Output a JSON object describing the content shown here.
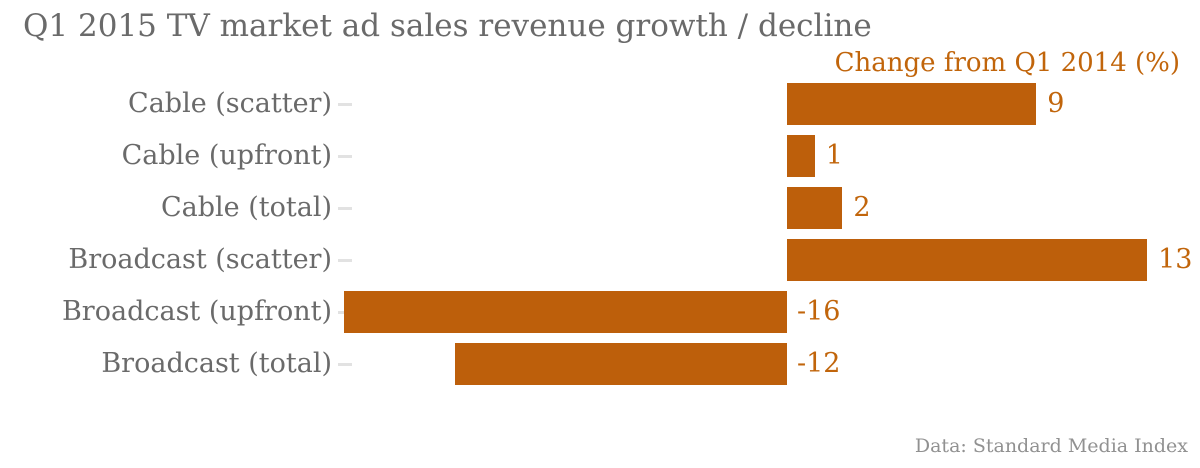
{
  "title": "Q1 2015 TV market ad sales revenue growth / decline",
  "legend": "Change from Q1 2014 (%)",
  "source": "Data: Standard Media Index",
  "colors": {
    "bar": "#bd5f0b",
    "accent_text": "#c1650b",
    "gray_text": "#6a6a6a",
    "source_text": "#919191",
    "tick": "#e2e2e2",
    "background": "#ffffff"
  },
  "chart_data": {
    "type": "bar",
    "orientation": "horizontal",
    "title": "Q1 2015 TV market ad sales revenue growth / decline",
    "series_label": "Change from Q1 2014 (%)",
    "categories": [
      "Cable (scatter)",
      "Cable (upfront)",
      "Cable (total)",
      "Broadcast (scatter)",
      "Broadcast (upfront)",
      "Broadcast (total)"
    ],
    "values": [
      9,
      1,
      2,
      13,
      -16,
      -12
    ],
    "value_labels": [
      "9",
      "1",
      "2",
      "13",
      "-16",
      "-12"
    ],
    "xlabel": "Change from Q1 2014 (%)",
    "ylabel": "",
    "xlim": [
      -16,
      13
    ],
    "grid": false,
    "legend_position": "top-right",
    "value_label_position": "outside-end-positive / at-zero-negative",
    "source": "Data: Standard Media Index"
  }
}
